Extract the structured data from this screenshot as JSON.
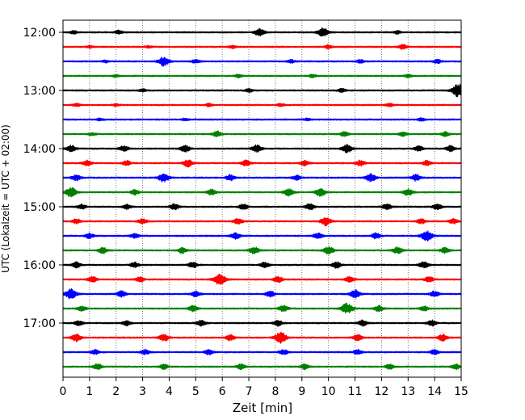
{
  "chart_data": {
    "type": "line",
    "title": "",
    "xlabel": "Zeit  [min]",
    "ylabel": "UTC (Lokalzeit = UTC + 02:00)",
    "xlim": [
      0,
      15
    ],
    "x_ticks": [
      "0",
      "1",
      "2",
      "3",
      "4",
      "5",
      "6",
      "7",
      "8",
      "9",
      "10",
      "11",
      "12",
      "13",
      "14",
      "15"
    ],
    "y_ticks": [
      "12:00",
      "13:00",
      "14:00",
      "15:00",
      "16:00",
      "17:00"
    ],
    "grid": "vertical dotted",
    "trace_colors": [
      "#000000",
      "#ff0000",
      "#0000ff",
      "#008000"
    ],
    "series": [
      {
        "start": "12:00",
        "events": [
          [
            0.4,
            0.4
          ],
          [
            2.1,
            0.5
          ],
          [
            7.4,
            1.0
          ],
          [
            9.8,
            1.2
          ],
          [
            12.6,
            0.4
          ]
        ]
      },
      {
        "start": "12:15",
        "events": [
          [
            1.0,
            0.3
          ],
          [
            3.2,
            0.3
          ],
          [
            6.4,
            0.4
          ],
          [
            10.0,
            0.5
          ],
          [
            12.8,
            0.6
          ]
        ]
      },
      {
        "start": "12:30",
        "events": [
          [
            1.6,
            0.3
          ],
          [
            3.8,
            1.3
          ],
          [
            5.0,
            0.5
          ],
          [
            8.6,
            0.4
          ],
          [
            11.2,
            0.5
          ],
          [
            14.1,
            0.5
          ]
        ]
      },
      {
        "start": "12:45",
        "events": [
          [
            2.0,
            0.3
          ],
          [
            6.6,
            0.4
          ],
          [
            9.4,
            0.4
          ],
          [
            13.0,
            0.4
          ]
        ]
      },
      {
        "start": "13:00",
        "events": [
          [
            3.0,
            0.4
          ],
          [
            7.0,
            0.5
          ],
          [
            10.5,
            0.5
          ],
          [
            14.9,
            1.8
          ]
        ]
      },
      {
        "start": "13:15",
        "events": [
          [
            0.5,
            0.4
          ],
          [
            2.0,
            0.3
          ],
          [
            5.5,
            0.4
          ],
          [
            8.2,
            0.4
          ],
          [
            12.3,
            0.4
          ]
        ]
      },
      {
        "start": "13:30",
        "events": [
          [
            1.4,
            0.3
          ],
          [
            4.6,
            0.3
          ],
          [
            9.2,
            0.3
          ],
          [
            13.5,
            0.4
          ]
        ]
      },
      {
        "start": "13:45",
        "events": [
          [
            1.1,
            0.4
          ],
          [
            5.8,
            0.8
          ],
          [
            10.6,
            0.7
          ],
          [
            12.8,
            0.6
          ],
          [
            14.4,
            0.6
          ]
        ]
      },
      {
        "start": "14:00",
        "events": [
          [
            0.3,
            0.9
          ],
          [
            2.3,
            0.8
          ],
          [
            4.6,
            0.9
          ],
          [
            7.3,
            1.0
          ],
          [
            10.7,
            1.1
          ],
          [
            13.4,
            0.8
          ],
          [
            14.6,
            0.8
          ]
        ]
      },
      {
        "start": "14:15",
        "events": [
          [
            0.9,
            0.8
          ],
          [
            2.4,
            0.7
          ],
          [
            4.7,
            1.0
          ],
          [
            6.9,
            0.8
          ],
          [
            9.1,
            0.7
          ],
          [
            11.2,
            0.8
          ],
          [
            13.7,
            0.7
          ]
        ]
      },
      {
        "start": "14:30",
        "events": [
          [
            0.5,
            0.8
          ],
          [
            3.8,
            1.2
          ],
          [
            6.3,
            0.8
          ],
          [
            8.8,
            0.7
          ],
          [
            11.6,
            1.1
          ],
          [
            13.3,
            0.9
          ]
        ]
      },
      {
        "start": "14:45",
        "events": [
          [
            0.3,
            1.3
          ],
          [
            2.7,
            0.7
          ],
          [
            5.6,
            0.8
          ],
          [
            8.5,
            1.0
          ],
          [
            9.7,
            1.1
          ],
          [
            13.0,
            0.9
          ]
        ]
      },
      {
        "start": "15:00",
        "events": [
          [
            0.7,
            0.7
          ],
          [
            2.4,
            0.7
          ],
          [
            4.2,
            0.8
          ],
          [
            6.8,
            0.8
          ],
          [
            9.3,
            0.9
          ],
          [
            12.2,
            0.8
          ],
          [
            14.1,
            0.8
          ]
        ]
      },
      {
        "start": "15:15",
        "events": [
          [
            0.5,
            0.6
          ],
          [
            3.0,
            0.7
          ],
          [
            6.6,
            0.8
          ],
          [
            9.9,
            1.2
          ],
          [
            13.5,
            0.7
          ],
          [
            14.7,
            0.7
          ]
        ]
      },
      {
        "start": "15:30",
        "events": [
          [
            1.0,
            0.7
          ],
          [
            2.7,
            0.7
          ],
          [
            6.5,
            0.9
          ],
          [
            9.6,
            0.8
          ],
          [
            11.8,
            0.8
          ],
          [
            13.7,
            1.4
          ]
        ]
      },
      {
        "start": "15:45",
        "events": [
          [
            1.5,
            0.8
          ],
          [
            4.5,
            0.8
          ],
          [
            7.2,
            1.0
          ],
          [
            10.0,
            1.1
          ],
          [
            12.6,
            0.9
          ],
          [
            14.4,
            0.8
          ]
        ]
      },
      {
        "start": "16:00",
        "events": [
          [
            0.5,
            0.8
          ],
          [
            2.7,
            0.7
          ],
          [
            4.9,
            0.8
          ],
          [
            7.6,
            0.8
          ],
          [
            10.3,
            0.8
          ],
          [
            13.6,
            0.9
          ]
        ]
      },
      {
        "start": "16:15",
        "events": [
          [
            1.1,
            0.8
          ],
          [
            2.9,
            0.7
          ],
          [
            5.9,
            1.6
          ],
          [
            8.1,
            0.8
          ],
          [
            10.8,
            0.8
          ],
          [
            13.8,
            0.8
          ]
        ]
      },
      {
        "start": "16:30",
        "events": [
          [
            0.3,
            1.4
          ],
          [
            2.2,
            0.8
          ],
          [
            5.0,
            0.8
          ],
          [
            7.8,
            0.8
          ],
          [
            11.0,
            1.1
          ],
          [
            14.0,
            0.8
          ]
        ]
      },
      {
        "start": "16:45",
        "events": [
          [
            0.7,
            0.7
          ],
          [
            4.9,
            0.9
          ],
          [
            8.3,
            0.9
          ],
          [
            10.7,
            1.5
          ],
          [
            11.9,
            0.8
          ],
          [
            13.6,
            0.7
          ]
        ]
      },
      {
        "start": "17:00",
        "events": [
          [
            0.6,
            0.7
          ],
          [
            2.4,
            0.7
          ],
          [
            5.2,
            0.8
          ],
          [
            8.1,
            0.8
          ],
          [
            11.3,
            0.8
          ],
          [
            13.9,
            0.8
          ]
        ]
      },
      {
        "start": "17:15",
        "events": [
          [
            0.5,
            1.0
          ],
          [
            3.8,
            1.0
          ],
          [
            6.3,
            0.8
          ],
          [
            8.2,
            1.5
          ],
          [
            11.1,
            0.9
          ],
          [
            14.3,
            0.9
          ]
        ]
      },
      {
        "start": "17:30",
        "events": [
          [
            1.2,
            0.7
          ],
          [
            3.1,
            0.7
          ],
          [
            5.5,
            0.7
          ],
          [
            8.3,
            0.7
          ],
          [
            11.1,
            0.7
          ],
          [
            14.0,
            0.7
          ]
        ]
      },
      {
        "start": "17:45",
        "events": [
          [
            1.3,
            0.8
          ],
          [
            3.8,
            0.7
          ],
          [
            6.7,
            0.7
          ],
          [
            9.1,
            0.7
          ],
          [
            12.3,
            0.7
          ],
          [
            14.8,
            0.7
          ]
        ]
      }
    ]
  }
}
